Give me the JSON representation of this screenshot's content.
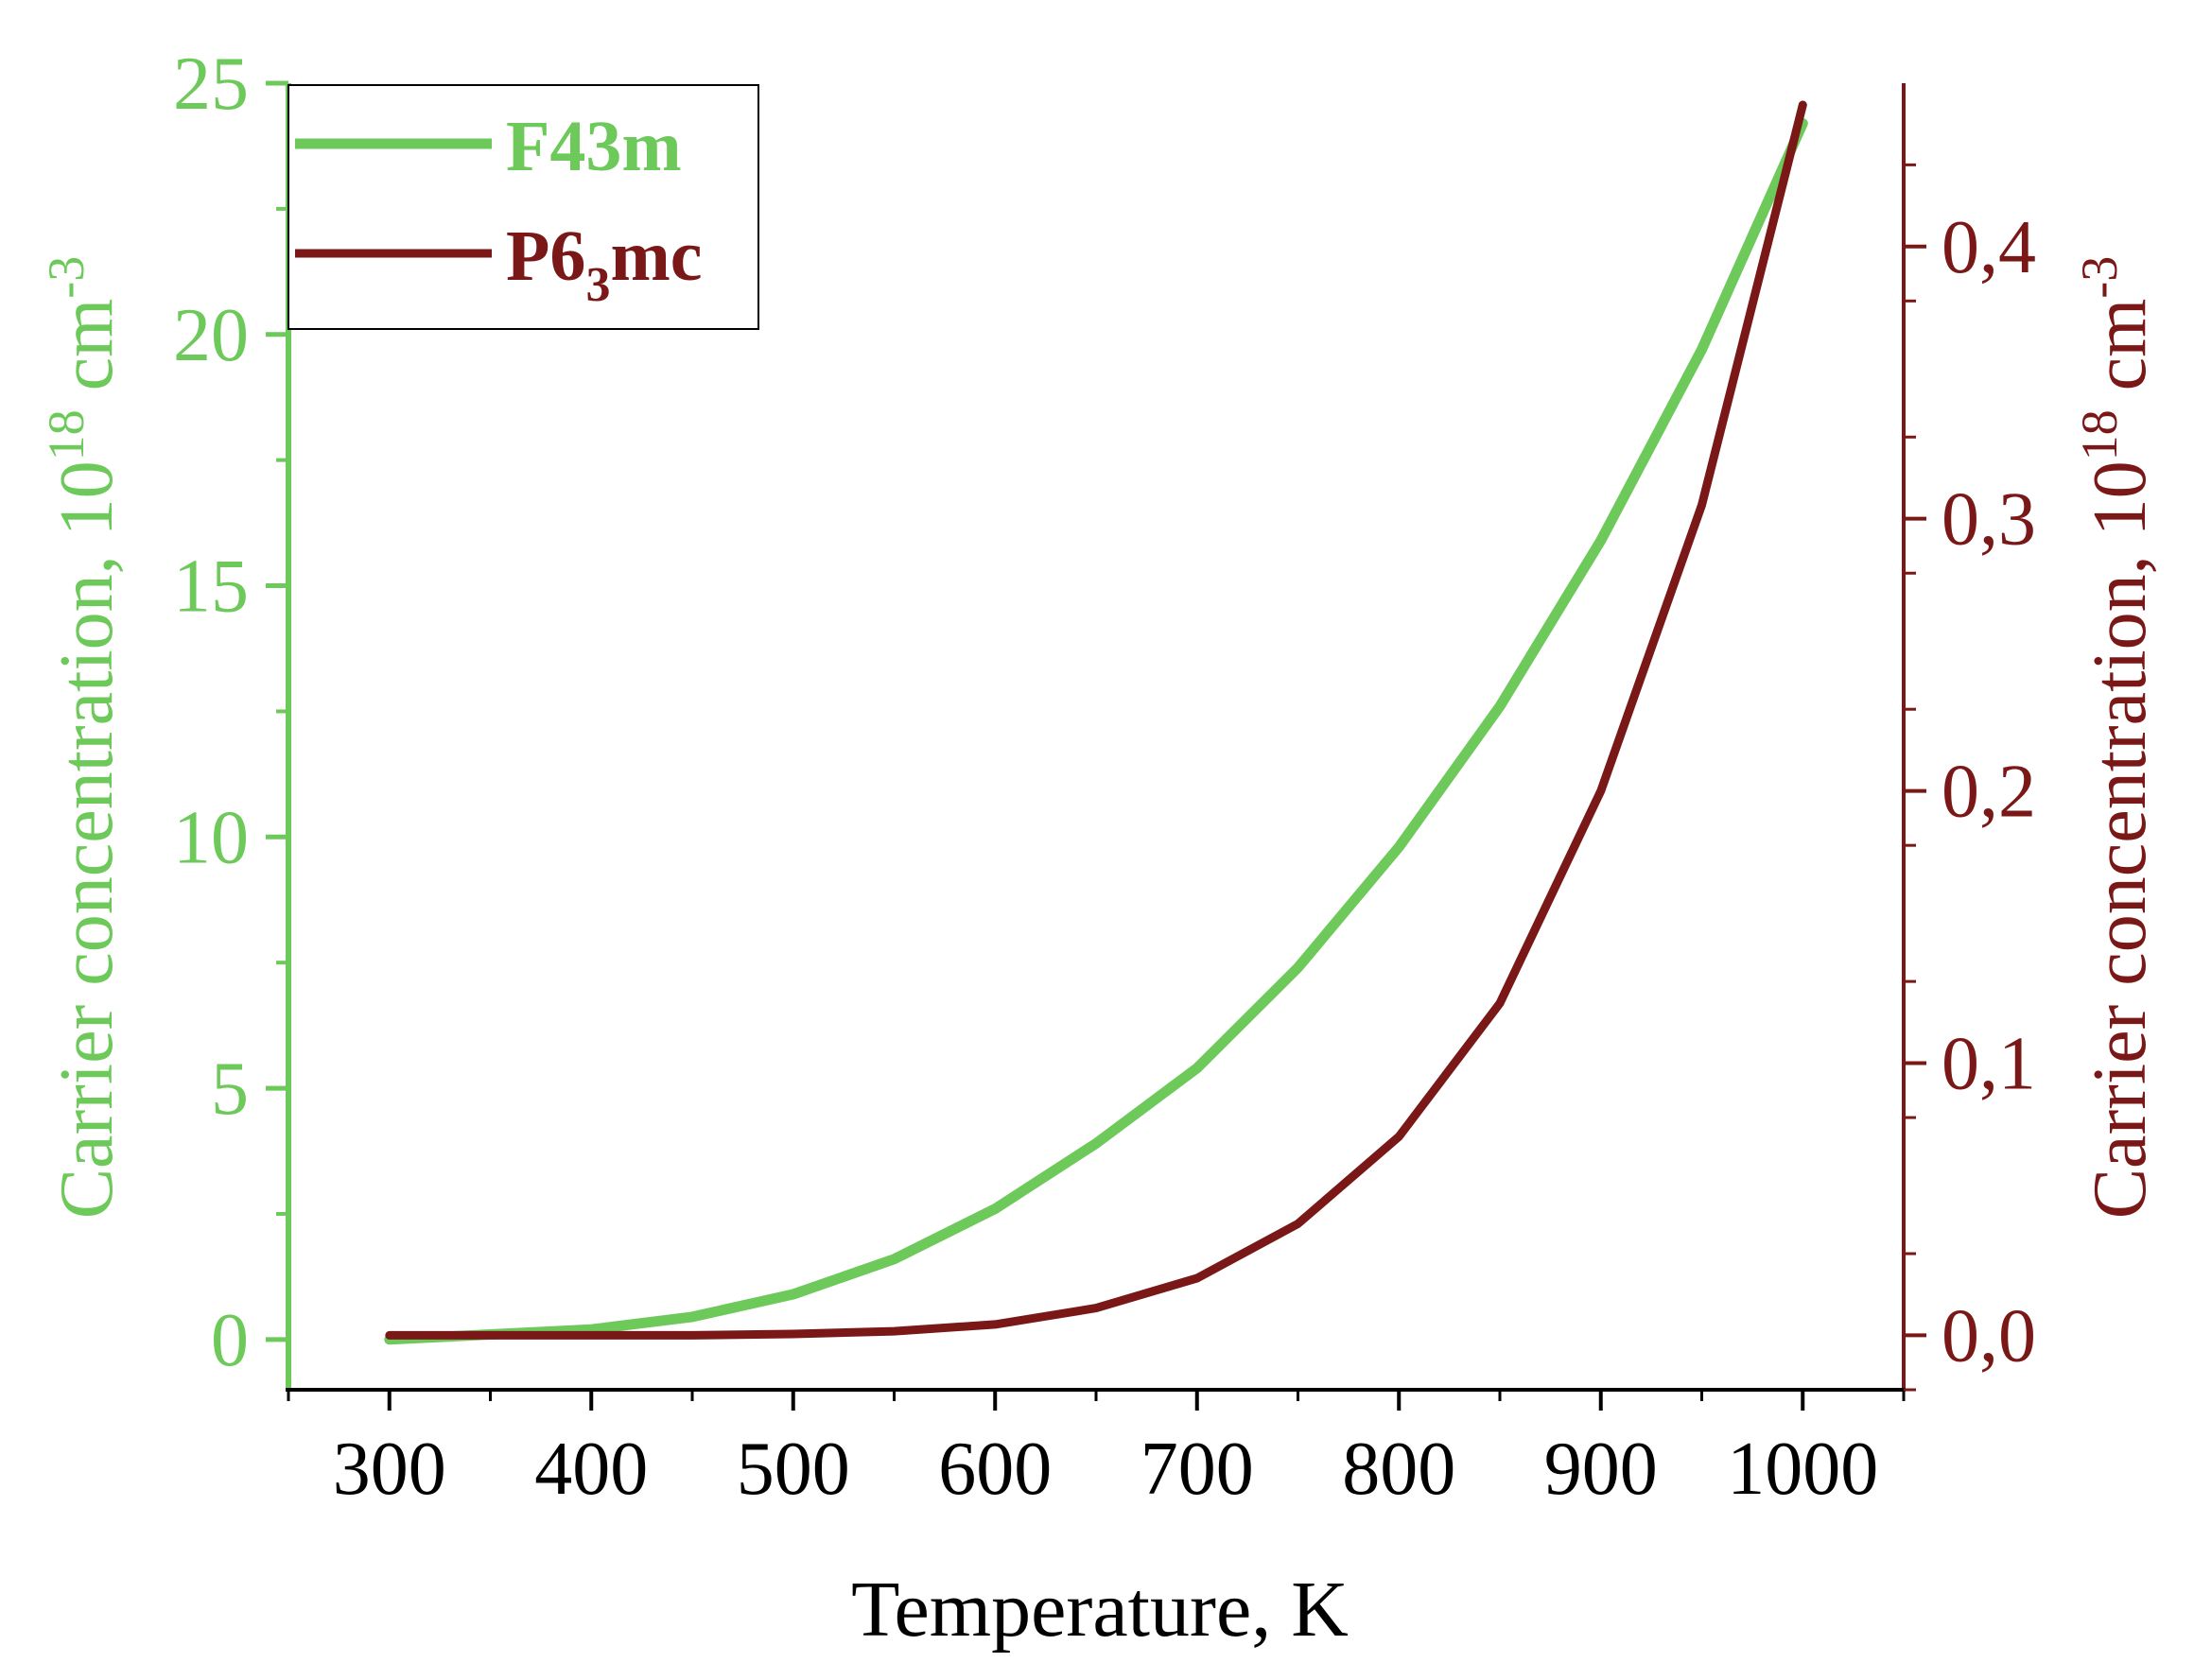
{
  "colors": {
    "left_axis": "#6cc95a",
    "right_axis": "#7a1818",
    "frame": "#000000"
  },
  "chart_data": {
    "type": "line",
    "x": [
      300,
      350,
      400,
      450,
      500,
      550,
      600,
      650,
      700,
      750,
      800,
      850,
      900,
      950,
      1000
    ],
    "xlabel": "Temperature, K",
    "xlim": [
      250,
      1050
    ],
    "x_ticks": [
      300,
      400,
      500,
      600,
      700,
      800,
      900,
      1000
    ],
    "y_left": {
      "label_main": "Carrier concentration, 10",
      "label_exp": "18",
      "label_unit": " cm",
      "label_unit_exp": "-3",
      "ylim": [
        -1,
        25
      ],
      "ticks": [
        0,
        5,
        10,
        15,
        20,
        25
      ],
      "tick_labels": [
        "0",
        "5",
        "10",
        "15",
        "20",
        "25"
      ]
    },
    "y_right": {
      "label_main": "Carrier concentration, 10",
      "label_exp": "18",
      "label_unit": " cm",
      "label_unit_exp": "-3",
      "ylim": [
        -0.02,
        0.46
      ],
      "ticks": [
        0.0,
        0.1,
        0.2,
        0.3,
        0.4
      ],
      "tick_labels": [
        "0,0",
        "0,1",
        "0,2",
        "0,3",
        "0,4"
      ]
    },
    "series": [
      {
        "name": "F43m",
        "legend_main": "F43m",
        "legend_sub": "",
        "legend_tail": "",
        "axis": "left",
        "color": "#6cc95a",
        "values": [
          0.0,
          0.1,
          0.2,
          0.45,
          0.9,
          1.6,
          2.6,
          3.9,
          5.4,
          7.4,
          9.8,
          12.6,
          15.9,
          19.7,
          24.2
        ]
      },
      {
        "name": "P6₃mc",
        "legend_main": "P6",
        "legend_sub": "3",
        "legend_tail": "mc",
        "axis": "right",
        "color": "#7a1818",
        "values": [
          0.0,
          0.0,
          0.0,
          0.0,
          0.0005,
          0.0015,
          0.004,
          0.01,
          0.021,
          0.041,
          0.073,
          0.122,
          0.2,
          0.305,
          0.452
        ]
      }
    ]
  }
}
